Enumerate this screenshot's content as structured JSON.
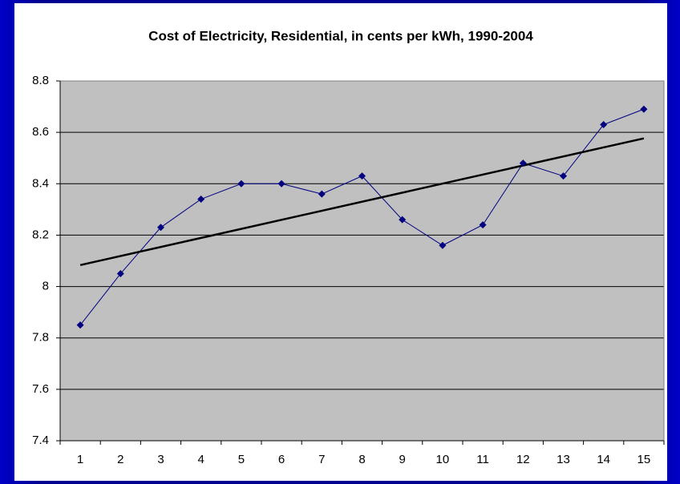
{
  "chart_data": {
    "type": "line",
    "title": "Cost of Electricity, Residential, in cents per kWh, 1990-2004",
    "categories": [
      1,
      2,
      3,
      4,
      5,
      6,
      7,
      8,
      9,
      10,
      11,
      12,
      13,
      14,
      15
    ],
    "series": [
      {
        "color": "#000080",
        "values": [
          7.85,
          8.05,
          8.23,
          8.34,
          8.4,
          8.4,
          8.36,
          8.43,
          8.26,
          8.16,
          8.24,
          8.48,
          8.43,
          8.63,
          8.69
        ]
      }
    ],
    "trendline": {
      "kind": "linear",
      "color": "#000000"
    },
    "ylim": [
      7.4,
      8.8
    ],
    "yticks": [
      7.4,
      7.6,
      7.8,
      8,
      8.2,
      8.4,
      8.6,
      8.8
    ],
    "grid": true,
    "plot_color": "#c0c0c0"
  }
}
